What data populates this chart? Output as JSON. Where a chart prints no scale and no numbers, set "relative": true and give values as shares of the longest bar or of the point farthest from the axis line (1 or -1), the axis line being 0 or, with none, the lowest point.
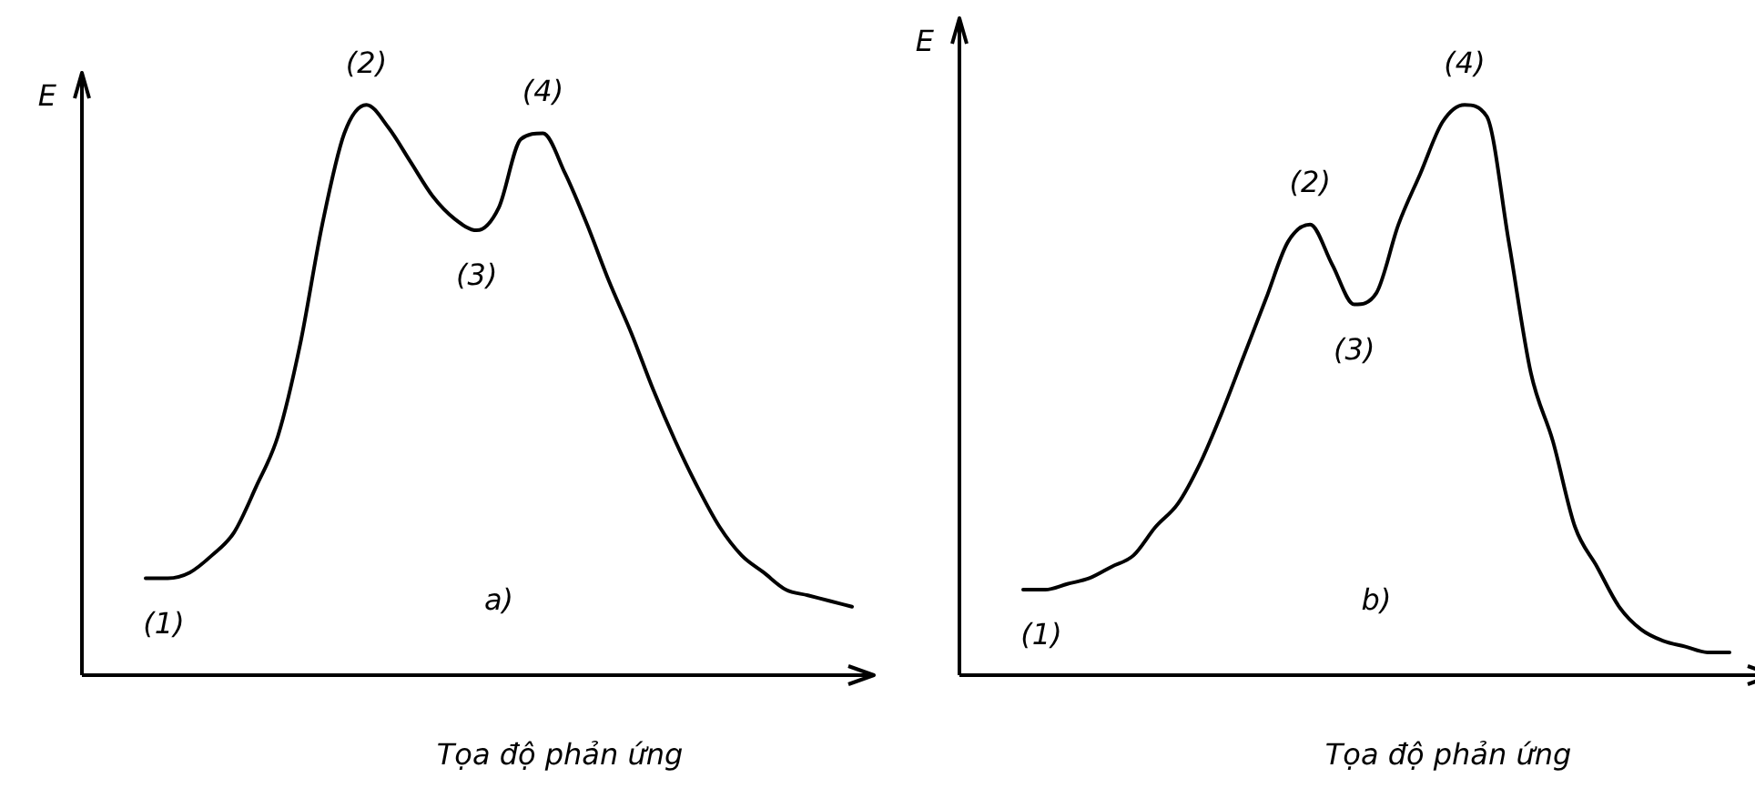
{
  "chart_data": [
    {
      "type": "line",
      "relative": true,
      "ylabel": "E",
      "xlabel": "Tọa độ phản ứng",
      "color": "#000000",
      "marker": "none",
      "line_style": "solid",
      "legend": false,
      "tick_labels": false,
      "categories": [
        null,
        null,
        null,
        null,
        null,
        null,
        null,
        null,
        null,
        null,
        null,
        null,
        null,
        null,
        null,
        null,
        null,
        null,
        null,
        null,
        null,
        null,
        null,
        null,
        null,
        null,
        null,
        null,
        null,
        null,
        null,
        null,
        null
      ],
      "values": [
        0.17,
        0.17,
        0.18,
        0.21,
        0.25,
        0.33,
        0.42,
        0.58,
        0.79,
        0.95,
        1,
        0.96,
        0.9,
        0.84,
        0.8,
        0.78,
        0.82,
        0.94,
        0.95,
        0.88,
        0.79,
        0.69,
        0.6,
        0.5,
        0.41,
        0.33,
        0.26,
        0.21,
        0.18,
        0.15,
        0.14,
        0.13,
        0.12
      ],
      "annotations": [
        "(1)",
        "(2)",
        "(3)",
        "(4)",
        "a)"
      ]
    },
    {
      "type": "line",
      "relative": true,
      "ylabel": "E",
      "xlabel": "Tọa độ phản ứng",
      "color": "#000000",
      "marker": "none",
      "line_style": "solid",
      "legend": false,
      "tick_labels": false,
      "categories": [
        null,
        null,
        null,
        null,
        null,
        null,
        null,
        null,
        null,
        null,
        null,
        null,
        null,
        null,
        null,
        null,
        null,
        null,
        null,
        null,
        null,
        null,
        null,
        null,
        null,
        null,
        null,
        null,
        null,
        null,
        null,
        null,
        null
      ],
      "values": [
        0.15,
        0.15,
        0.16,
        0.17,
        0.19,
        0.21,
        0.26,
        0.3,
        0.37,
        0.46,
        0.56,
        0.66,
        0.76,
        0.79,
        0.72,
        0.65,
        0.67,
        0.79,
        0.88,
        0.97,
        1,
        0.98,
        0.76,
        0.53,
        0.41,
        0.26,
        0.19,
        0.12,
        0.08,
        0.06,
        0.05,
        0.04,
        0.04
      ],
      "annotations": [
        "(1)",
        "(2)",
        "(3)",
        "(4)",
        "b)"
      ]
    }
  ]
}
